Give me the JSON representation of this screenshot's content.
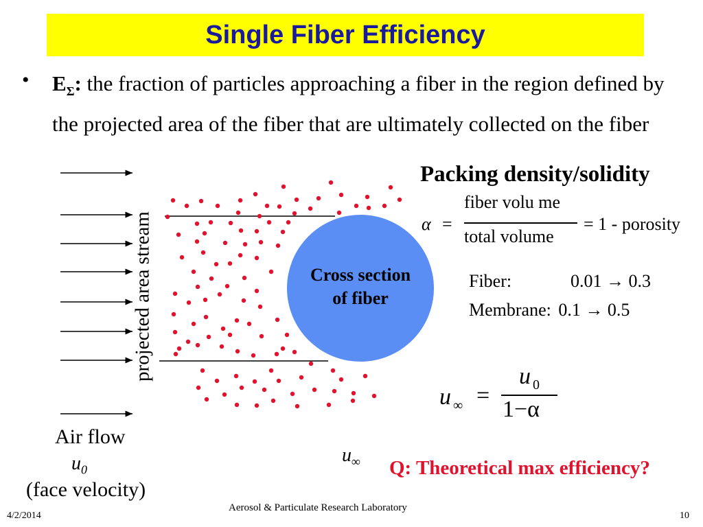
{
  "title": "Single Fiber Efficiency",
  "bullet": {
    "symbol": "•",
    "term": "E",
    "term_sub": "Σ",
    "term_colon": ":",
    "text": " the fraction of particles approaching a fiber in the region defined by the projected area of the fiber that are ultimately collected on the fiber"
  },
  "diagram": {
    "stream_label": "projected area stream",
    "fiber_label_line1": "Cross section",
    "fiber_label_line2": "of fiber",
    "fiber_color": "#5b8ef5",
    "particle_color": "#e0122d"
  },
  "packing": {
    "heading": "Packing density/solidity",
    "alpha": "α",
    "equals": "=",
    "numerator": "fiber volu me",
    "denominator": "total volume",
    "rhs": "= 1 - porosity",
    "fiber_label": "Fiber:",
    "fiber_range": "0.01 → 0.3",
    "membrane_label": "Membrane:",
    "membrane_range": "0.1 → 0.5"
  },
  "velocity_eq": {
    "lhs": "u",
    "lhs_sub": "∞",
    "equals": "=",
    "numerator": "u",
    "numerator_sub": "0",
    "denominator": "1−α"
  },
  "labels": {
    "air_flow": "Air flow",
    "u0": "u",
    "u0_sub": "0",
    "face_velocity": "(face velocity)",
    "u_inf": "u",
    "u_inf_sub": "∞"
  },
  "question": "Q: Theoretical max efficiency?",
  "footer": {
    "date": "4/2/2014",
    "lab": "Aerosol & Particulate Research Laboratory",
    "page": "10"
  }
}
